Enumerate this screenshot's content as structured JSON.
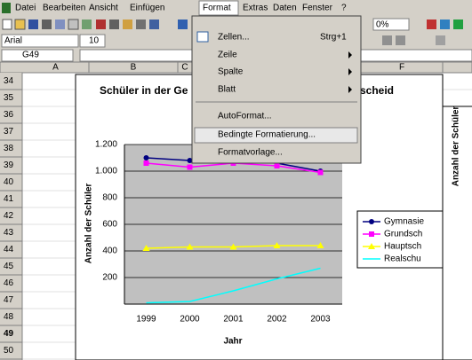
{
  "menubar": [
    "Datei",
    "Bearbeiten",
    "Ansicht",
    "Einfügen",
    "Format",
    "Extras",
    "Daten",
    "Fenster",
    "?"
  ],
  "toolbar": {
    "zoom": "0%",
    "font": "Arial",
    "size": "10"
  },
  "name_box": "G49",
  "columns": [
    "A",
    "B",
    "C",
    "F"
  ],
  "row_numbers": [
    34,
    35,
    36,
    37,
    38,
    39,
    40,
    41,
    42,
    43,
    44,
    45,
    46,
    47,
    48,
    49,
    50
  ],
  "format_menu": {
    "items": [
      {
        "label": "Zellen...",
        "shortcut": "Strg+1"
      },
      {
        "label": "Zeile"
      },
      {
        "label": "Spalte"
      },
      {
        "label": "Blatt"
      },
      {
        "label": "AutoFormat..."
      },
      {
        "label": "Bedingte Formatierung..."
      },
      {
        "label": "Formatvorlage..."
      }
    ]
  },
  "chart_data": {
    "type": "line",
    "title": "Schüler in der Ge",
    "title_end": "scheid",
    "ylabel": "Anzahl der Schüler",
    "xlabel": "Jahr",
    "categories": [
      "1999",
      "2000",
      "2001",
      "2002",
      "2003"
    ],
    "ylim": [
      0,
      1200
    ],
    "yticks": [
      {
        "value": 1200,
        "label": "1.200"
      },
      {
        "value": 1000,
        "label": "1.000"
      },
      800,
      600,
      400,
      200
    ],
    "grid": true,
    "series": [
      {
        "name": "Gymnasie",
        "color": "#000080",
        "values": [
          1100,
          1080,
          1080,
          1060,
          1000
        ]
      },
      {
        "name": "Grundsch",
        "color": "#ff00ff",
        "values": [
          1060,
          1030,
          1060,
          1040,
          990
        ]
      },
      {
        "name": "Hauptsch",
        "color": "#ffff00",
        "values": [
          420,
          430,
          430,
          440,
          440
        ]
      },
      {
        "name": "Realschu",
        "color": "#00ffff",
        "values": [
          10,
          20,
          100,
          190,
          270
        ]
      }
    ],
    "second_chart_ylabel": "Anzahl der Schüler"
  }
}
